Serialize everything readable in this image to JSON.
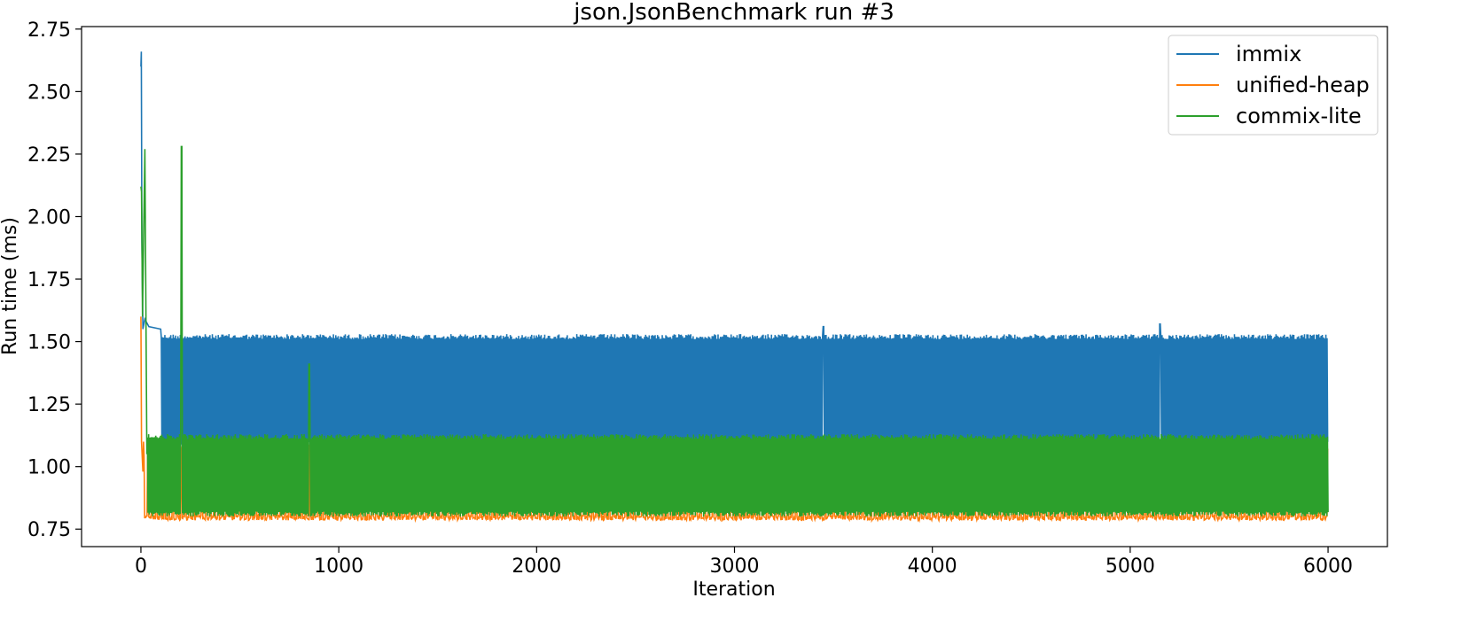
{
  "chart_data": {
    "type": "line",
    "title": "json.JsonBenchmark run #3",
    "xlabel": "Iteration",
    "ylabel": "Run time (ms)",
    "xlim": [
      -300,
      6300
    ],
    "ylim": [
      0.68,
      2.76
    ],
    "xticks": [
      0,
      1000,
      2000,
      3000,
      4000,
      5000,
      6000
    ],
    "yticks": [
      0.75,
      1.0,
      1.25,
      1.5,
      1.75,
      2.0,
      2.25,
      2.5,
      2.75
    ],
    "ytick_labels": [
      "0.75",
      "1.00",
      "1.25",
      "1.50",
      "1.75",
      "2.00",
      "2.25",
      "2.50",
      "2.75"
    ],
    "legend_position": "top-right",
    "grid": false,
    "series": [
      {
        "name": "immix",
        "color": "#1f77b4",
        "n_points": 6000,
        "low": 1.08,
        "high": 1.53,
        "warmup": [
          [
            0,
            2.6
          ],
          [
            2,
            2.66
          ],
          [
            5,
            1.9
          ],
          [
            10,
            1.55
          ],
          [
            20,
            1.59
          ],
          [
            40,
            1.56
          ],
          [
            100,
            1.55
          ]
        ],
        "spikes": [
          [
            3450,
            1.56
          ],
          [
            5150,
            1.57
          ]
        ]
      },
      {
        "name": "unified-heap",
        "color": "#ff7f0e",
        "n_points": 6000,
        "low": 0.785,
        "high": 1.1,
        "mid": 1.04,
        "warmup": [
          [
            0,
            1.6
          ],
          [
            3,
            1.1
          ],
          [
            10,
            0.98
          ]
        ],
        "spikes": [
          [
            845,
            0.79
          ]
        ]
      },
      {
        "name": "commix-lite",
        "color": "#2ca02c",
        "n_points": 6000,
        "low": 0.8,
        "high": 1.13,
        "warmup": [
          [
            0,
            2.12
          ],
          [
            3,
            2.1
          ],
          [
            8,
            1.6
          ],
          [
            20,
            2.27
          ],
          [
            30,
            1.05
          ]
        ],
        "spikes": [
          [
            205,
            2.28
          ],
          [
            850,
            1.41
          ]
        ]
      }
    ]
  }
}
